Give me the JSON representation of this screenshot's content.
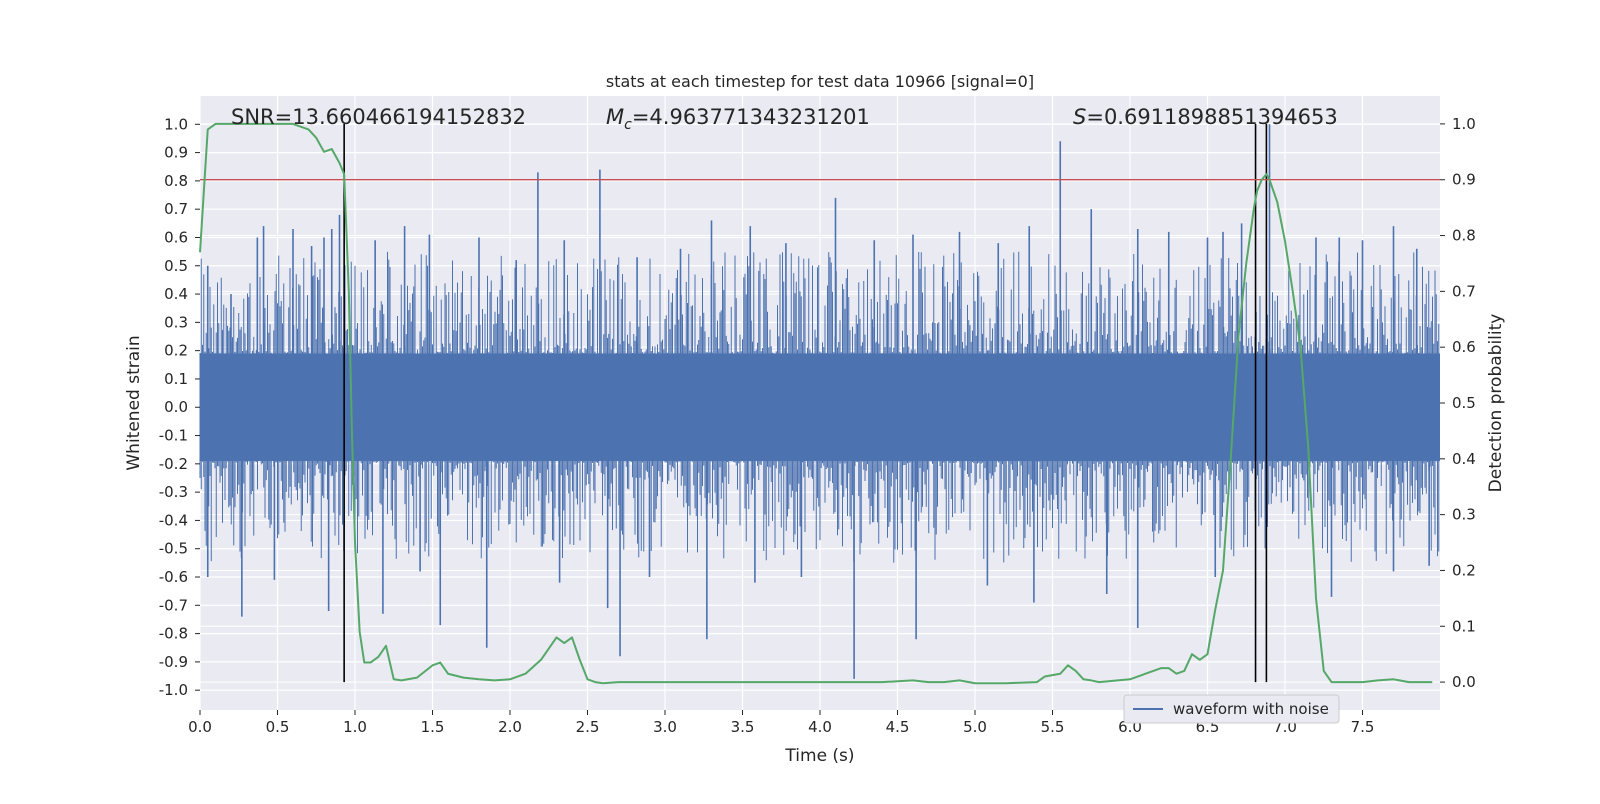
{
  "chart_data": {
    "type": "line",
    "title": "stats at each timestep for test data 10966 [signal=0]",
    "xlabel": "Time (s)",
    "ylabel_left": "Whitened strain",
    "ylabel_right": "Detection probability",
    "xlim": [
      0.0,
      8.0
    ],
    "ylim_left": [
      -1.07,
      1.1
    ],
    "ylim_right": [
      -0.05,
      1.05
    ],
    "grid": true,
    "legend_position": "lower-right",
    "x_ticks": [
      "0.0",
      "0.5",
      "1.0",
      "1.5",
      "2.0",
      "2.5",
      "3.0",
      "3.5",
      "4.0",
      "4.5",
      "5.0",
      "5.5",
      "6.0",
      "6.5",
      "7.0",
      "7.5"
    ],
    "y_ticks_left": [
      "1.0",
      "0.9",
      "0.8",
      "0.7",
      "0.6",
      "0.5",
      "0.4",
      "0.3",
      "0.2",
      "0.1",
      "0.0",
      "-0.1",
      "-0.2",
      "-0.3",
      "-0.4",
      "-0.5",
      "-0.6",
      "-0.7",
      "-0.8",
      "-0.9",
      "-1.0"
    ],
    "y_ticks_right": [
      "1.0",
      "0.9",
      "0.8",
      "0.7",
      "0.6",
      "0.5",
      "0.4",
      "0.3",
      "0.2",
      "0.1",
      "0.0"
    ],
    "annotations": {
      "snr": "SNR=13.660466194152832",
      "mc_symbol": "M",
      "mc_subscript": "c",
      "mc_value": "=4.963771343231201",
      "s_symbol": "S",
      "s_value": "=0.6911898851394653"
    },
    "threshold": {
      "axis": "right",
      "value": 0.9,
      "color": "#c44e52"
    },
    "vertical_markers": [
      0.93,
      6.81,
      6.88
    ],
    "strain_series": {
      "name": "waveform with noise",
      "color": "#4c72b0",
      "band_upper": 0.19,
      "band_lower": -0.19,
      "peaks_max": [
        [
          0.05,
          0.5
        ],
        [
          0.2,
          0.4
        ],
        [
          0.37,
          0.6
        ],
        [
          0.41,
          0.64
        ],
        [
          0.6,
          0.63
        ],
        [
          0.72,
          0.57
        ],
        [
          0.8,
          0.6
        ],
        [
          0.85,
          0.63
        ],
        [
          0.9,
          0.68
        ],
        [
          1.13,
          0.59
        ],
        [
          1.32,
          0.64
        ],
        [
          1.48,
          0.61
        ],
        [
          1.8,
          0.6
        ],
        [
          2.04,
          0.52
        ],
        [
          2.18,
          0.83
        ],
        [
          2.35,
          0.59
        ],
        [
          2.58,
          0.84
        ],
        [
          2.82,
          0.53
        ],
        [
          3.1,
          0.56
        ],
        [
          3.3,
          0.66
        ],
        [
          3.55,
          0.64
        ],
        [
          3.78,
          0.58
        ],
        [
          4.1,
          0.74
        ],
        [
          4.35,
          0.59
        ],
        [
          4.6,
          0.61
        ],
        [
          4.9,
          0.62
        ],
        [
          5.15,
          0.58
        ],
        [
          5.35,
          0.64
        ],
        [
          5.55,
          0.94
        ],
        [
          5.75,
          0.7
        ],
        [
          6.05,
          0.63
        ],
        [
          6.25,
          0.62
        ],
        [
          6.5,
          0.6
        ],
        [
          6.6,
          0.62
        ],
        [
          6.72,
          0.65
        ],
        [
          6.9,
          1.0
        ],
        [
          7.2,
          0.6
        ],
        [
          7.35,
          0.6
        ],
        [
          7.5,
          0.59
        ],
        [
          7.7,
          0.64
        ],
        [
          7.85,
          0.56
        ]
      ],
      "peaks_min": [
        [
          0.05,
          -0.6
        ],
        [
          0.27,
          -0.74
        ],
        [
          0.48,
          -0.61
        ],
        [
          0.83,
          -0.72
        ],
        [
          1.18,
          -0.73
        ],
        [
          1.42,
          -0.58
        ],
        [
          1.55,
          -0.77
        ],
        [
          1.85,
          -0.85
        ],
        [
          2.32,
          -0.62
        ],
        [
          2.63,
          -0.71
        ],
        [
          2.71,
          -0.88
        ],
        [
          2.9,
          -0.6
        ],
        [
          3.27,
          -0.82
        ],
        [
          3.58,
          -0.62
        ],
        [
          3.88,
          -0.6
        ],
        [
          4.22,
          -0.96
        ],
        [
          4.62,
          -0.82
        ],
        [
          5.08,
          -0.63
        ],
        [
          5.38,
          -0.69
        ],
        [
          5.85,
          -0.66
        ],
        [
          6.05,
          -0.78
        ],
        [
          6.55,
          -0.6
        ],
        [
          7.3,
          -0.67
        ],
        [
          7.7,
          -0.58
        ],
        [
          7.93,
          -0.56
        ]
      ]
    },
    "probability_series": {
      "color": "#55a868",
      "x": [
        0.0,
        0.05,
        0.1,
        0.2,
        0.3,
        0.5,
        0.6,
        0.7,
        0.75,
        0.8,
        0.85,
        0.9,
        0.93,
        0.96,
        0.98,
        1.0,
        1.03,
        1.06,
        1.1,
        1.15,
        1.2,
        1.25,
        1.3,
        1.4,
        1.5,
        1.55,
        1.6,
        1.7,
        1.8,
        1.9,
        2.0,
        2.1,
        2.2,
        2.3,
        2.35,
        2.4,
        2.45,
        2.5,
        2.55,
        2.6,
        2.7,
        2.8,
        2.9,
        3.0,
        3.2,
        3.4,
        3.6,
        3.8,
        4.0,
        4.2,
        4.4,
        4.6,
        4.7,
        4.8,
        4.9,
        5.0,
        5.2,
        5.4,
        5.45,
        5.55,
        5.6,
        5.65,
        5.7,
        5.75,
        5.8,
        6.0,
        6.1,
        6.2,
        6.25,
        6.3,
        6.35,
        6.4,
        6.45,
        6.5,
        6.55,
        6.6,
        6.65,
        6.7,
        6.75,
        6.8,
        6.82,
        6.85,
        6.88,
        6.9,
        6.95,
        7.0,
        7.05,
        7.1,
        7.15,
        7.2,
        7.25,
        7.3,
        7.5,
        7.6,
        7.7,
        7.8,
        7.95
      ],
      "y": [
        0.77,
        0.99,
        1.0,
        1.0,
        1.0,
        1.0,
        1.0,
        0.99,
        0.975,
        0.95,
        0.955,
        0.93,
        0.91,
        0.7,
        0.45,
        0.25,
        0.09,
        0.035,
        0.035,
        0.045,
        0.065,
        0.005,
        0.003,
        0.008,
        0.03,
        0.035,
        0.015,
        0.008,
        0.005,
        0.003,
        0.005,
        0.015,
        0.04,
        0.08,
        0.07,
        0.08,
        0.04,
        0.005,
        0.0,
        -0.002,
        0.0,
        0.0,
        0.0,
        0.0,
        0.0,
        0.0,
        0.0,
        0.0,
        0.0,
        0.0,
        0.0,
        0.003,
        0.0,
        0.0,
        0.003,
        -0.002,
        -0.002,
        0.0,
        0.01,
        0.015,
        0.03,
        0.02,
        0.005,
        0.003,
        0.0,
        0.005,
        0.015,
        0.025,
        0.025,
        0.015,
        0.02,
        0.05,
        0.04,
        0.05,
        0.13,
        0.2,
        0.4,
        0.62,
        0.75,
        0.85,
        0.88,
        0.9,
        0.91,
        0.9,
        0.86,
        0.79,
        0.7,
        0.6,
        0.42,
        0.15,
        0.02,
        0.0,
        0.0,
        0.003,
        0.005,
        0.0,
        0.0
      ]
    }
  }
}
